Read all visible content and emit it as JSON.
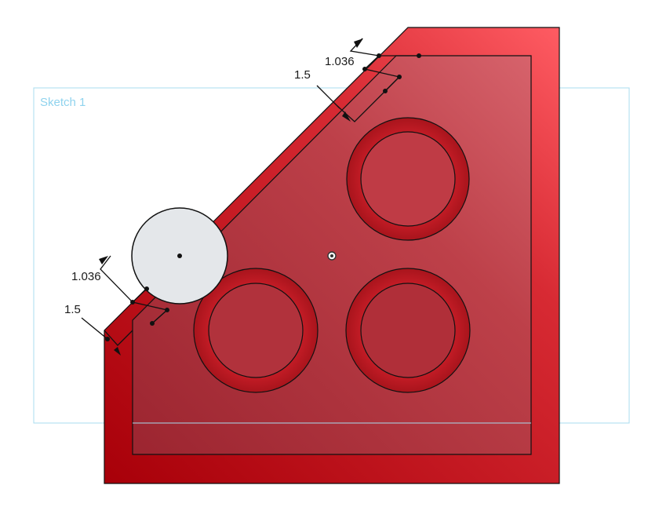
{
  "sketch": {
    "name": "Sketch 1",
    "frame_color": "#a8dcef"
  },
  "part": {
    "face_color": "#b3151c",
    "face_highlight": "#ff5a60",
    "pocket_color": "#a52b34",
    "ring_color": "#a9161d"
  },
  "dimensions": {
    "top_offset": "1.036",
    "top_depth": "1.5",
    "left_offset": "1.036",
    "left_depth": "1.5"
  },
  "origin_marker": {
    "icon": "origin-point-icon"
  },
  "construction_circle": {
    "fill": "#e3e6e8"
  }
}
